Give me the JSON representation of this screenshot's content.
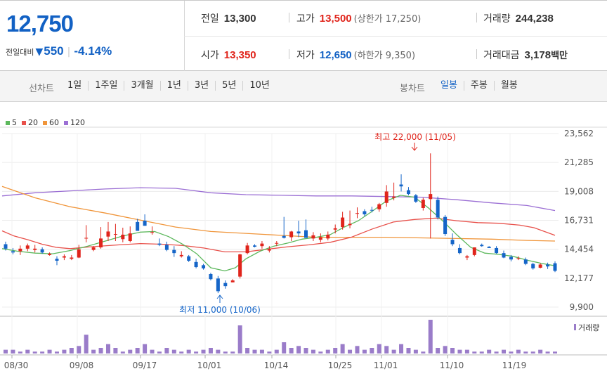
{
  "summary": {
    "current_price": "12,750",
    "change_label": "전일대비",
    "change_value": "550",
    "change_pct": "-4.14%",
    "prev_close_label": "전일",
    "prev_close": "13,300",
    "high_label": "고가",
    "high": "13,500",
    "upper_limit_label": "(상한가 17,250)",
    "volume_label": "거래량",
    "volume": "244,238",
    "open_label": "시가",
    "open": "13,350",
    "low_label": "저가",
    "low": "12,650",
    "lower_limit_label": "(하한가 9,350)",
    "trade_value_label": "거래대금",
    "trade_value": "3,178",
    "trade_value_unit": "백만"
  },
  "controls": {
    "line_chart_label": "선차트",
    "periods": [
      "1일",
      "1주일",
      "3개월",
      "1년",
      "3년",
      "5년",
      "10년"
    ],
    "candle_chart_label": "봉차트",
    "candle_types": [
      "일봉",
      "주봉",
      "월봉"
    ],
    "active_candle_type": "일봉"
  },
  "colors": {
    "up": "#e0241b",
    "down": "#1565c8",
    "ma5": "#5cb85c",
    "ma20": "#e8504a",
    "ma60": "#f0953a",
    "ma120": "#9b6fd4",
    "volume": "#9a7cc9"
  },
  "chart_data": {
    "type": "candlestick",
    "legend": [
      {
        "name": "5",
        "color": "#5cb85c"
      },
      {
        "name": "20",
        "color": "#e8504a"
      },
      {
        "name": "60",
        "color": "#f0953a"
      },
      {
        "name": "120",
        "color": "#9b6fd4"
      }
    ],
    "y_ticks": [
      "23,562",
      "21,285",
      "19,008",
      "16,731",
      "14,454",
      "12,177",
      "9,900"
    ],
    "ylim": [
      9900,
      23562
    ],
    "x_ticks": [
      "08/30",
      "09/08",
      "09/17",
      "10/01",
      "10/14",
      "10/25",
      "11/01",
      "11/10",
      "11/19"
    ],
    "annotation_high": "최고 22,000 (11/05)",
    "annotation_low": "최저 11,000 (10/06)",
    "volume_label": "거래량",
    "ohlc": [
      [
        14850,
        15050,
        14350,
        14500
      ],
      [
        14300,
        14550,
        14050,
        14200
      ],
      [
        14300,
        14750,
        14000,
        14500
      ],
      [
        14500,
        14900,
        14300,
        14750
      ],
      [
        14400,
        14800,
        14200,
        14500
      ],
      [
        14450,
        14600,
        14100,
        14200
      ],
      [
        14000,
        14200,
        13950,
        14100
      ],
      [
        13700,
        13900,
        13200,
        13550
      ],
      [
        13800,
        14050,
        13600,
        13900
      ],
      [
        13700,
        14000,
        13600,
        13800
      ],
      [
        13800,
        14800,
        13750,
        14450
      ],
      [
        15350,
        16350,
        15000,
        15350
      ],
      [
        14400,
        14700,
        14300,
        14600
      ],
      [
        14600,
        16200,
        14500,
        15300
      ],
      [
        15450,
        16600,
        15100,
        15850
      ],
      [
        15600,
        16450,
        15100,
        15650
      ],
      [
        15250,
        16150,
        15000,
        15600
      ],
      [
        15100,
        16250,
        15000,
        15700
      ],
      [
        16600,
        16850,
        15900,
        15900
      ],
      [
        16700,
        17200,
        16300,
        16300
      ],
      [
        15750,
        16250,
        15600,
        15800
      ],
      [
        14900,
        15300,
        14700,
        14800
      ],
      [
        14800,
        15050,
        14300,
        14400
      ],
      [
        14400,
        14700,
        13850,
        14150
      ],
      [
        13900,
        14300,
        13800,
        14000
      ],
      [
        13900,
        14000,
        13450,
        13550
      ],
      [
        13450,
        13700,
        12950,
        13050
      ],
      [
        13200,
        13300,
        12850,
        12950
      ],
      [
        12500,
        12600,
        12000,
        12100
      ],
      [
        12150,
        12350,
        11000,
        11150
      ],
      [
        11800,
        12000,
        11350,
        11550
      ],
      [
        11850,
        12100,
        11850,
        12000
      ],
      [
        12300,
        14100,
        12150,
        14050
      ],
      [
        14150,
        14950,
        14050,
        14750
      ],
      [
        14750,
        14850,
        14600,
        14650
      ],
      [
        14700,
        15100,
        14500,
        14900
      ],
      [
        14350,
        14700,
        14200,
        14450
      ],
      [
        14900,
        15100,
        14700,
        14950
      ],
      [
        15500,
        17000,
        15300,
        15350
      ],
      [
        15400,
        15900,
        15100,
        15850
      ],
      [
        15850,
        16700,
        15400,
        15700
      ],
      [
        15950,
        16800,
        15350,
        15350
      ],
      [
        15300,
        15800,
        15100,
        15550
      ],
      [
        15200,
        15700,
        15000,
        15400
      ],
      [
        15300,
        15850,
        15150,
        15600
      ],
      [
        16000,
        16400,
        15700,
        16100
      ],
      [
        16200,
        17400,
        16000,
        16950
      ],
      [
        16350,
        17500,
        16100,
        16450
      ],
      [
        17250,
        17750,
        16900,
        17300
      ],
      [
        17450,
        17600,
        17050,
        17200
      ],
      [
        17550,
        17800,
        17350,
        17500
      ],
      [
        17600,
        18100,
        17400,
        18000
      ],
      [
        18100,
        19500,
        17800,
        19000
      ],
      [
        18500,
        19700,
        18300,
        18600
      ],
      [
        19550,
        20350,
        19000,
        19400
      ],
      [
        19100,
        19350,
        18700,
        18800
      ],
      [
        18700,
        18800,
        18100,
        18200
      ],
      [
        17700,
        18500,
        17500,
        18350
      ],
      [
        18400,
        22000,
        15300,
        18800
      ],
      [
        18350,
        18600,
        16800,
        16950
      ],
      [
        17000,
        17150,
        15500,
        15650
      ],
      [
        15200,
        15700,
        14700,
        14850
      ],
      [
        14550,
        14850,
        14050,
        14150
      ],
      [
        13800,
        14000,
        13600,
        13900
      ],
      [
        14000,
        14600,
        13900,
        14600
      ],
      [
        14800,
        14900,
        14650,
        14700
      ],
      [
        14650,
        14700,
        14550,
        14550
      ],
      [
        14550,
        14700,
        14100,
        14150
      ],
      [
        14150,
        14350,
        13750,
        13800
      ],
      [
        13850,
        14000,
        13500,
        13650
      ],
      [
        13700,
        13900,
        13600,
        13750
      ],
      [
        13650,
        13800,
        13200,
        13300
      ],
      [
        13300,
        13400,
        12850,
        12950
      ],
      [
        13000,
        13350,
        12950,
        13250
      ],
      [
        13250,
        13400,
        12900,
        13100
      ],
      [
        13350,
        13500,
        12650,
        12750
      ]
    ],
    "volume": [
      2,
      2,
      1,
      2,
      1,
      1,
      2,
      1,
      2,
      3,
      4,
      10,
      2,
      3,
      5,
      3,
      1,
      2,
      3,
      5,
      2,
      1,
      3,
      2,
      1,
      2,
      1,
      2,
      3,
      2,
      1,
      1,
      15,
      3,
      2,
      2,
      1,
      2,
      6,
      3,
      4,
      3,
      2,
      1,
      2,
      3,
      5,
      2,
      4,
      2,
      3,
      5,
      4,
      2,
      5,
      3,
      2,
      1,
      18,
      3,
      4,
      3,
      2,
      2,
      1,
      1,
      2,
      1,
      2,
      1,
      2,
      1,
      1,
      2,
      1,
      1
    ],
    "ma5": [
      [
        3,
        14500
      ],
      [
        25,
        14300
      ],
      [
        50,
        14150
      ],
      [
        75,
        14100
      ],
      [
        100,
        14350
      ],
      [
        125,
        14700
      ],
      [
        150,
        15100
      ],
      [
        175,
        15500
      ],
      [
        200,
        15800
      ],
      [
        220,
        15850
      ],
      [
        240,
        15450
      ],
      [
        260,
        14850
      ],
      [
        280,
        14100
      ],
      [
        300,
        13000
      ],
      [
        320,
        12750
      ],
      [
        335,
        13000
      ],
      [
        350,
        13700
      ],
      [
        370,
        14300
      ],
      [
        390,
        14700
      ],
      [
        410,
        14950
      ],
      [
        430,
        15250
      ],
      [
        450,
        15400
      ],
      [
        470,
        15600
      ],
      [
        490,
        16200
      ],
      [
        510,
        16700
      ],
      [
        530,
        17450
      ],
      [
        550,
        18250
      ],
      [
        570,
        18700
      ],
      [
        590,
        18550
      ],
      [
        610,
        17700
      ],
      [
        630,
        16700
      ],
      [
        650,
        15600
      ],
      [
        670,
        14600
      ],
      [
        690,
        14150
      ],
      [
        710,
        14050
      ],
      [
        730,
        13900
      ],
      [
        750,
        13600
      ],
      [
        770,
        13350
      ],
      [
        790,
        13150
      ]
    ],
    "ma20": [
      [
        3,
        15900
      ],
      [
        20,
        15500
      ],
      [
        40,
        15200
      ],
      [
        60,
        14850
      ],
      [
        80,
        14600
      ],
      [
        100,
        14500
      ],
      [
        130,
        14650
      ],
      [
        170,
        14800
      ],
      [
        200,
        14900
      ],
      [
        230,
        14850
      ],
      [
        260,
        14750
      ],
      [
        290,
        14550
      ],
      [
        320,
        14250
      ],
      [
        350,
        14250
      ],
      [
        380,
        14450
      ],
      [
        410,
        14650
      ],
      [
        440,
        14800
      ],
      [
        470,
        15000
      ],
      [
        500,
        15400
      ],
      [
        530,
        16050
      ],
      [
        560,
        16600
      ],
      [
        590,
        16800
      ],
      [
        620,
        16900
      ],
      [
        650,
        16700
      ],
      [
        680,
        16550
      ],
      [
        710,
        16500
      ],
      [
        740,
        16350
      ],
      [
        760,
        16150
      ],
      [
        790,
        15550
      ]
    ],
    "ma60": [
      [
        3,
        19400
      ],
      [
        50,
        18500
      ],
      [
        100,
        17800
      ],
      [
        150,
        17300
      ],
      [
        200,
        16750
      ],
      [
        250,
        16200
      ],
      [
        300,
        15850
      ],
      [
        350,
        15700
      ],
      [
        400,
        15550
      ],
      [
        450,
        15400
      ],
      [
        500,
        15400
      ],
      [
        550,
        15400
      ],
      [
        600,
        15350
      ],
      [
        650,
        15300
      ],
      [
        700,
        15250
      ],
      [
        750,
        15150
      ],
      [
        790,
        15100
      ]
    ],
    "ma120": [
      [
        3,
        18650
      ],
      [
        50,
        18900
      ],
      [
        100,
        19050
      ],
      [
        150,
        19200
      ],
      [
        200,
        19300
      ],
      [
        250,
        19250
      ],
      [
        300,
        18900
      ],
      [
        350,
        18750
      ],
      [
        400,
        18700
      ],
      [
        450,
        18650
      ],
      [
        500,
        18650
      ],
      [
        550,
        18600
      ],
      [
        600,
        18550
      ],
      [
        650,
        18350
      ],
      [
        700,
        18100
      ],
      [
        750,
        17900
      ],
      [
        790,
        17500
      ]
    ]
  }
}
